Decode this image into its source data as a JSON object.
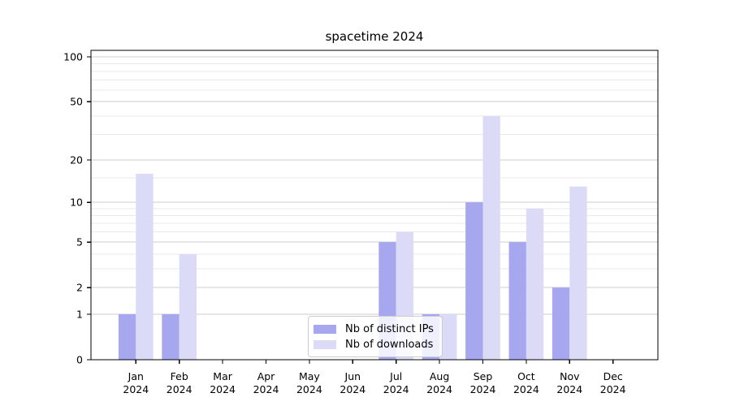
{
  "chart_data": {
    "type": "bar",
    "title": "spacetime 2024",
    "categories": [
      {
        "month": "Jan",
        "year": "2024"
      },
      {
        "month": "Feb",
        "year": "2024"
      },
      {
        "month": "Mar",
        "year": "2024"
      },
      {
        "month": "Apr",
        "year": "2024"
      },
      {
        "month": "May",
        "year": "2024"
      },
      {
        "month": "Jun",
        "year": "2024"
      },
      {
        "month": "Jul",
        "year": "2024"
      },
      {
        "month": "Aug",
        "year": "2024"
      },
      {
        "month": "Sep",
        "year": "2024"
      },
      {
        "month": "Oct",
        "year": "2024"
      },
      {
        "month": "Nov",
        "year": "2024"
      },
      {
        "month": "Dec",
        "year": "2024"
      }
    ],
    "series": [
      {
        "name": "Nb of distinct IPs",
        "color": "#a7a7f0",
        "values": [
          1,
          1,
          0,
          0,
          0,
          0,
          5,
          1,
          10,
          5,
          2,
          0
        ]
      },
      {
        "name": "Nb of downloads",
        "color": "#dbdbf8",
        "values": [
          16,
          4,
          0,
          0,
          0,
          0,
          6,
          1,
          40,
          9,
          13,
          0
        ]
      }
    ],
    "y_axis": {
      "scale": "log1p",
      "major_ticks": [
        0,
        1,
        2,
        5,
        10,
        20,
        50,
        100
      ],
      "minor_ticks": [
        3,
        4,
        6,
        7,
        8,
        9,
        15,
        30,
        40,
        60,
        70,
        80,
        90
      ],
      "max": 110
    },
    "legend_position": "lower center",
    "grid": true,
    "colors": {
      "grid_major": "#cccccc",
      "grid_minor": "#eaeaea",
      "spine": "#000000",
      "text": "#000000",
      "background": "#ffffff"
    }
  }
}
